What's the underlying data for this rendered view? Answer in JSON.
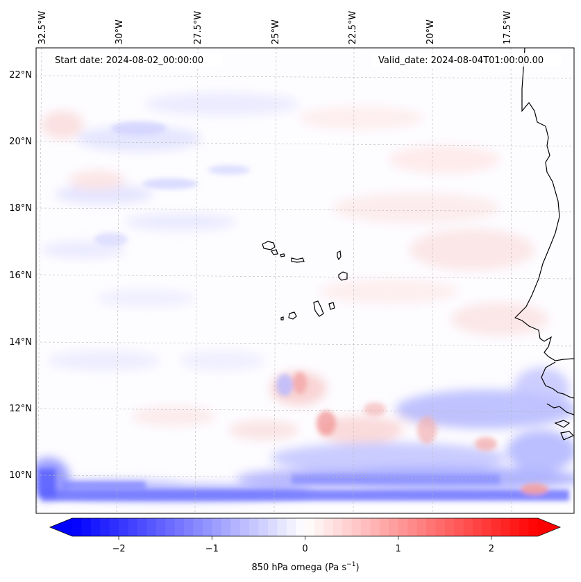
{
  "map": {
    "start_date": "Start date: 2024-08-02_00:00:00",
    "valid_date": "Valid_date: 2024-08-04T01:00:00.00",
    "longitude_labels": [
      "32.5°W",
      "30°W",
      "27.5°W",
      "25°W",
      "22.5°W",
      "20°W",
      "17.5°W"
    ],
    "latitude_labels": [
      "22°N",
      "20°N",
      "18°N",
      "16°N",
      "14°N",
      "12°N",
      "10°N"
    ],
    "field": "850 hPa omega",
    "extent": {
      "lon_min": -33.0,
      "lon_max": -15.2,
      "lat_min": 8.9,
      "lat_max": 22.8
    }
  },
  "colorbar": {
    "label": "850 hPa omega (Pa s",
    "label_exponent": "−1",
    "label_close": ")",
    "ticks": [
      "−2",
      "−1",
      "0",
      "1",
      "2"
    ],
    "tick_values": [
      -2,
      -1,
      0,
      1,
      2
    ],
    "vmin": -2.5,
    "vmax": 2.5,
    "low_color": "#0000ff",
    "mid_color": "#ffffff",
    "high_color": "#ff0000"
  }
}
